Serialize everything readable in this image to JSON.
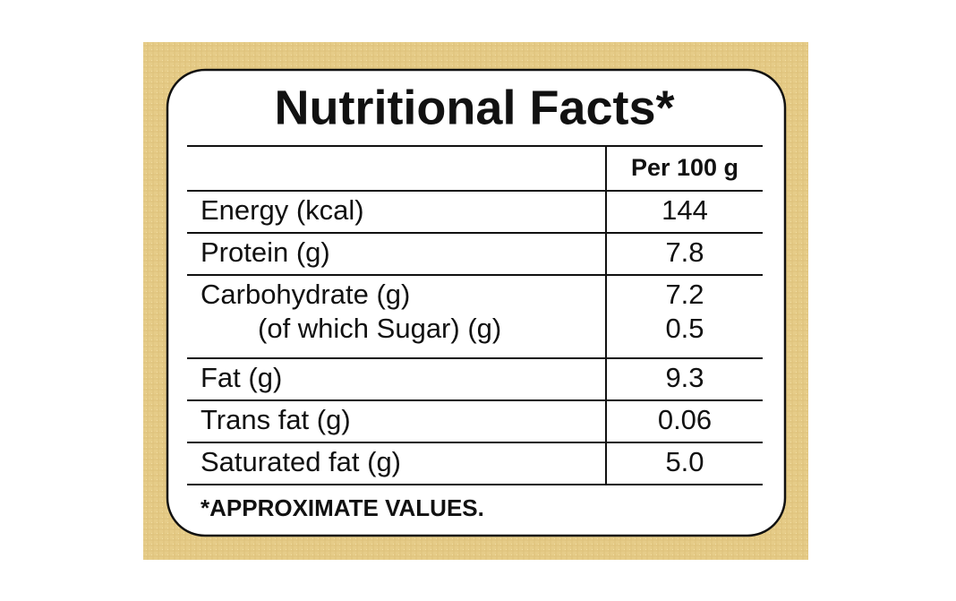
{
  "header": {
    "title": "Nutritional Facts*"
  },
  "table": {
    "column_header": "Per 100 g",
    "rows": [
      {
        "label": "Energy (kcal)",
        "value": "144"
      },
      {
        "label": "Protein (g)",
        "value": "7.8"
      },
      {
        "label": "Carbohydrate (g)",
        "value": "7.2",
        "sub": {
          "label": "(of which Sugar) (g)",
          "value": "0.5"
        }
      },
      {
        "label": "Fat (g)",
        "value": "9.3"
      },
      {
        "label": "Trans fat (g)",
        "value": "0.06"
      },
      {
        "label": "Saturated fat (g)",
        "value": "5.0"
      }
    ]
  },
  "footer": {
    "note": "*APPROXIMATE VALUES."
  }
}
